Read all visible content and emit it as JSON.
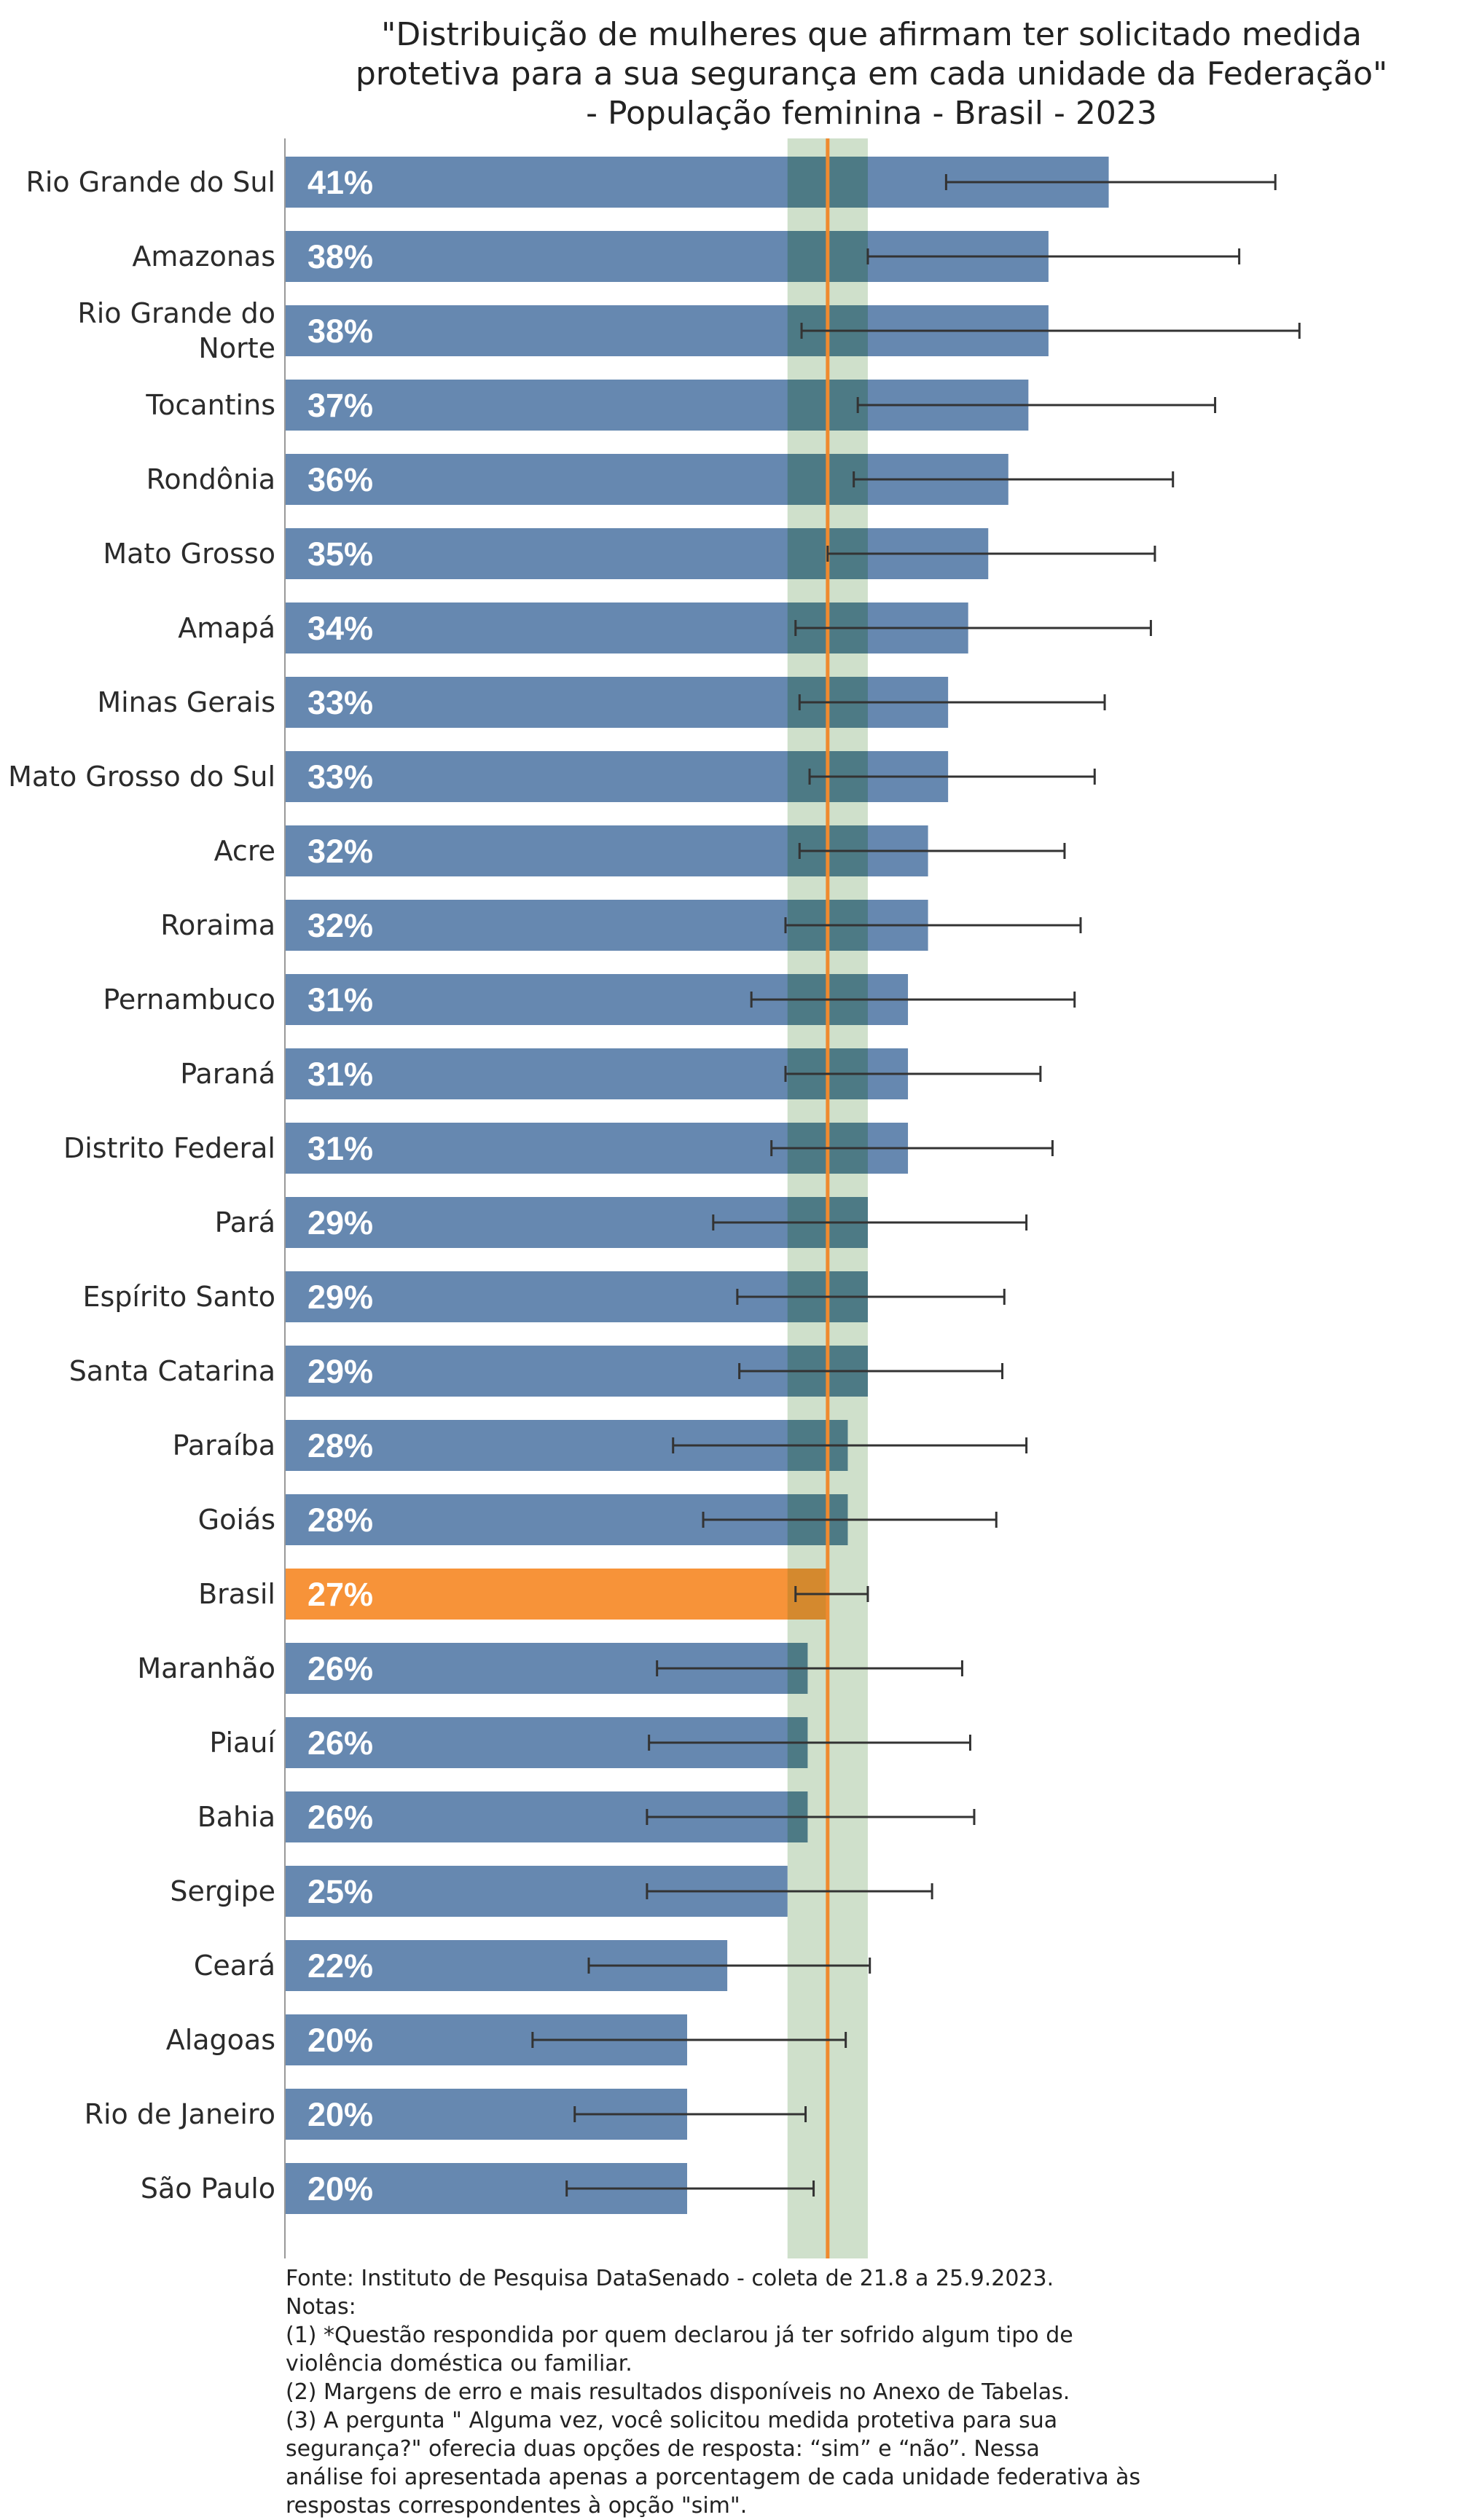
{
  "chart_data": {
    "type": "bar",
    "orientation": "horizontal",
    "title_lines": [
      "\"Distribuição de mulheres que afirmam ter solicitado medida",
      "protetiva para a sua segurança em cada unidade da Federação\"",
      "- População feminina - Brasil - 2023"
    ],
    "categories": [
      "Rio Grande do Sul",
      "Amazonas",
      "Rio Grande do Norte",
      "Tocantins",
      "Rondônia",
      "Mato Grosso",
      "Amapá",
      "Minas Gerais",
      "Mato Grosso do Sul",
      "Acre",
      "Roraima",
      "Pernambuco",
      "Paraná",
      "Distrito Federal",
      "Pará",
      "Espírito Santo",
      "Santa Catarina",
      "Paraíba",
      "Goiás",
      "Brasil",
      "Maranhão",
      "Piauí",
      "Bahia",
      "Sergipe",
      "Ceará",
      "Alagoas",
      "Rio de Janeiro",
      "São Paulo"
    ],
    "category_label_lines": [
      [
        "Rio Grande do Sul"
      ],
      [
        "Amazonas"
      ],
      [
        "Rio Grande do",
        "Norte"
      ],
      [
        "Tocantins"
      ],
      [
        "Rondônia"
      ],
      [
        "Mato Grosso"
      ],
      [
        "Amapá"
      ],
      [
        "Minas Gerais"
      ],
      [
        "Mato Grosso do Sul"
      ],
      [
        "Acre"
      ],
      [
        "Roraima"
      ],
      [
        "Pernambuco"
      ],
      [
        "Paraná"
      ],
      [
        "Distrito Federal"
      ],
      [
        "Pará"
      ],
      [
        "Espírito Santo"
      ],
      [
        "Santa Catarina"
      ],
      [
        "Paraíba"
      ],
      [
        "Goiás"
      ],
      [
        "Brasil"
      ],
      [
        "Maranhão"
      ],
      [
        "Piauí"
      ],
      [
        "Bahia"
      ],
      [
        "Sergipe"
      ],
      [
        "Ceará"
      ],
      [
        "Alagoas"
      ],
      [
        "Rio de Janeiro"
      ],
      [
        "São Paulo"
      ]
    ],
    "values": [
      41,
      38,
      38,
      37,
      36,
      35,
      34,
      33,
      33,
      32,
      32,
      31,
      31,
      31,
      29,
      29,
      29,
      28,
      28,
      27,
      26,
      26,
      26,
      25,
      22,
      20,
      20,
      20
    ],
    "value_labels": [
      "41%",
      "38%",
      "38%",
      "37%",
      "36%",
      "35%",
      "34%",
      "33%",
      "33%",
      "32%",
      "32%",
      "31%",
      "31%",
      "31%",
      "29%",
      "29%",
      "29%",
      "28%",
      "28%",
      "27%",
      "26%",
      "26%",
      "26%",
      "25%",
      "22%",
      "20%",
      "20%",
      "20%"
    ],
    "error_low": [
      32.9,
      29.0,
      25.7,
      28.5,
      28.3,
      27.0,
      25.4,
      25.6,
      26.1,
      25.6,
      24.9,
      23.2,
      24.9,
      24.2,
      21.3,
      22.5,
      22.6,
      19.3,
      20.8,
      25.4,
      18.5,
      18.1,
      18.0,
      18.0,
      15.1,
      12.3,
      14.4,
      14.0
    ],
    "error_high": [
      49.3,
      47.5,
      50.5,
      46.3,
      44.2,
      43.3,
      43.1,
      40.8,
      40.3,
      38.8,
      39.6,
      39.3,
      37.6,
      38.2,
      36.9,
      35.8,
      35.7,
      36.9,
      35.4,
      29.0,
      33.7,
      34.1,
      34.3,
      32.2,
      29.1,
      27.9,
      25.9,
      26.3
    ],
    "highlight_category": "Brasil",
    "reference_line": 27,
    "reference_band": [
      25,
      29
    ],
    "xlim": [
      0,
      56
    ],
    "colors": {
      "bar": "#6688b0",
      "highlight_bar": "#f79339",
      "band": "#cfe0cb",
      "band_over_bar": "#4d7a85",
      "band_over_highlight": "#d4892e",
      "reference_line": "#ef8a2f",
      "error_bar": "#333333",
      "axis": "#999999"
    }
  },
  "notes": [
    "Fonte: Instituto de Pesquisa DataSenado - coleta de 21.8 a 25.9.2023.",
    "Notas:",
    "(1) *Questão respondida por quem declarou já ter sofrido algum tipo de",
    "violência doméstica ou familiar.",
    "(2) Margens de erro e mais resultados disponíveis no Anexo de Tabelas.",
    "(3) A pergunta \" Alguma vez, você solicitou medida protetiva para sua",
    "segurança?\" oferecia duas opções de resposta: “sim” e “não”. Nessa",
    "análise foi apresentada apenas a porcentagem de cada unidade federativa às",
    "respostas correspondentes à opção \"sim\"."
  ]
}
